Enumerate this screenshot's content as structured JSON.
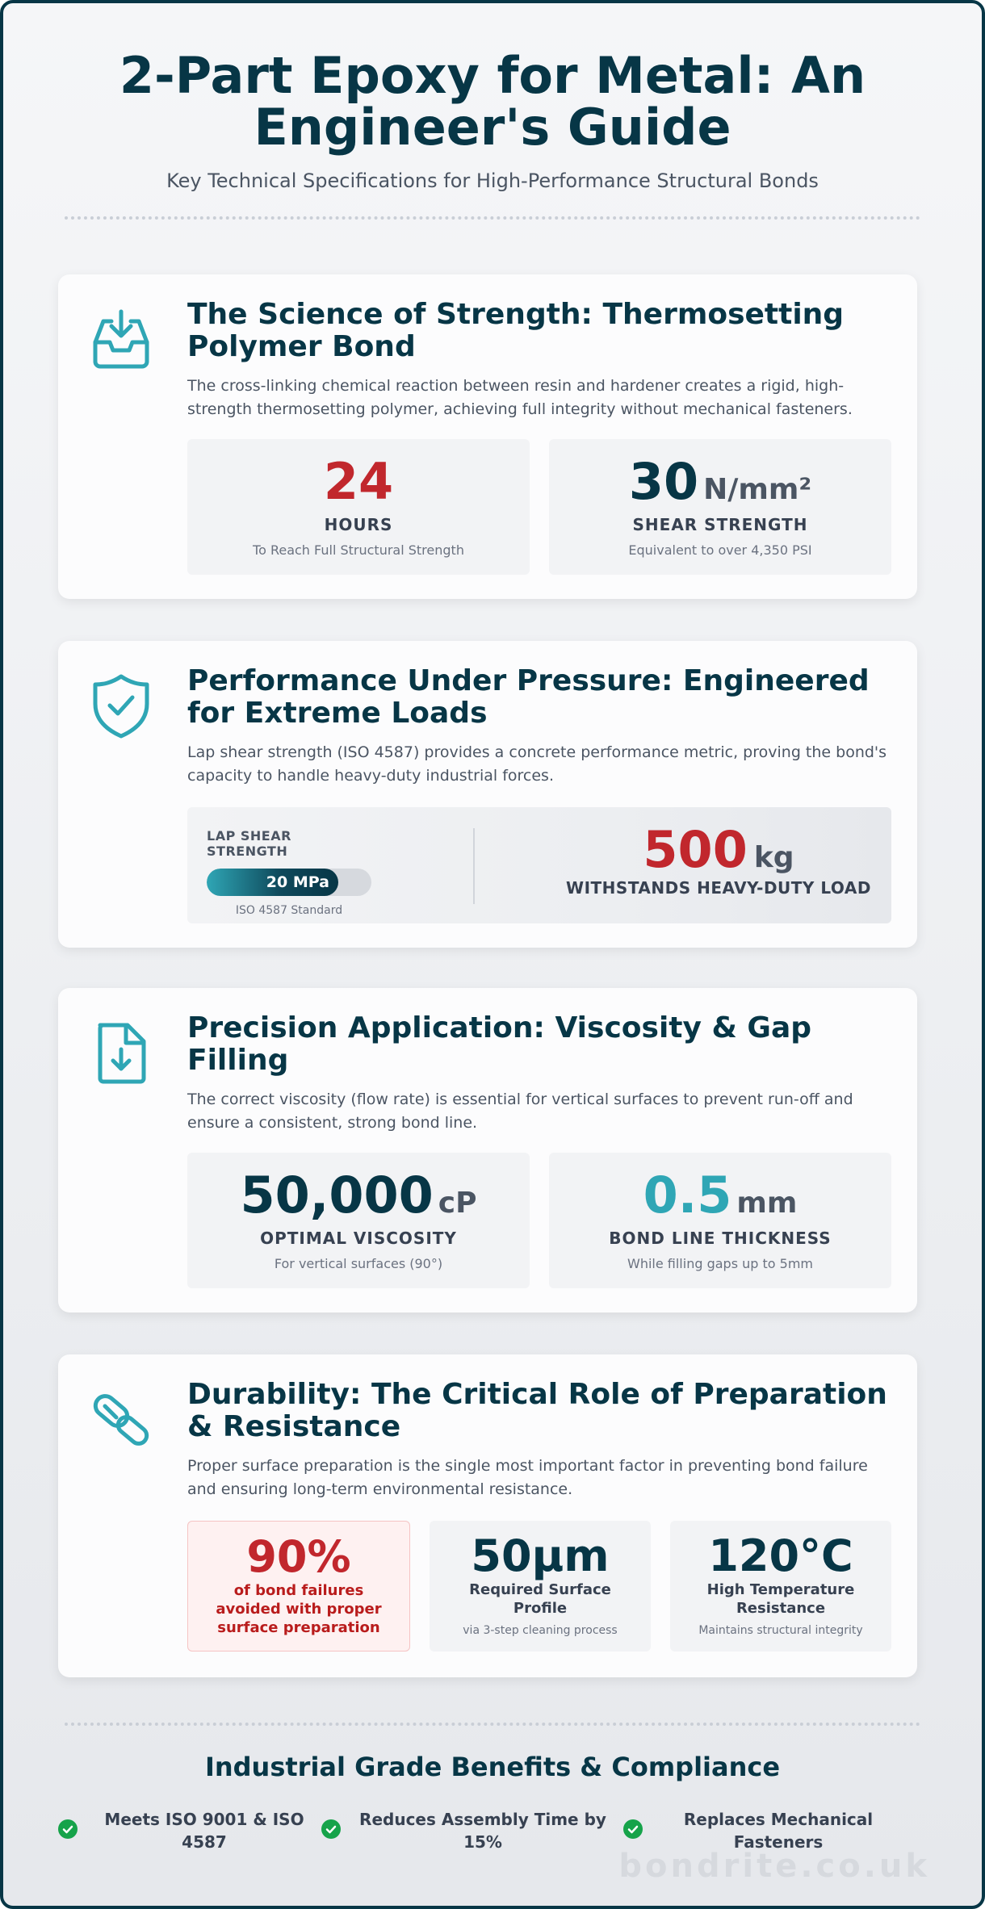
{
  "header": {
    "title": "2-Part Epoxy for Metal: An Engineer's Guide",
    "subtitle": "Key Technical Specifications for High-Performance Structural Bonds"
  },
  "sections": [
    {
      "icon": "inbox-download-icon",
      "title": "The Science of Strength: Thermosetting Polymer Bond",
      "description": "The cross-linking chemical reaction between resin and hardener creates a rigid, high-strength thermosetting polymer, achieving full integrity without mechanical fasteners.",
      "stats": [
        {
          "value": "24",
          "unit": "",
          "label": "HOURS",
          "note": "To Reach Full Structural Strength",
          "color": "#c1272d"
        },
        {
          "value": "30",
          "unit": "N/mm²",
          "label": "SHEAR STRENGTH",
          "note": "Equivalent to over 4,350 PSI",
          "color": "#073646"
        }
      ]
    },
    {
      "icon": "shield-check-icon",
      "title": "Performance Under Pressure: Engineered for Extreme Loads",
      "description": "Lap shear strength (ISO 4587) provides a concrete performance metric, proving the bond's capacity to handle heavy-duty industrial forces.",
      "lap": {
        "label": "LAP SHEAR STRENGTH",
        "value": "20 MPa",
        "fill_fraction": 0.8,
        "standard": "ISO 4587 Standard"
      },
      "load": {
        "value": "500",
        "unit": "kg",
        "label": "WITHSTANDS HEAVY-DUTY LOAD",
        "color": "#c1272d"
      }
    },
    {
      "icon": "file-download-icon",
      "title": "Precision Application: Viscosity & Gap Filling",
      "description": "The correct viscosity (flow rate) is essential for vertical surfaces to prevent run-off and ensure a consistent, strong bond line.",
      "stats": [
        {
          "value": "50,000",
          "unit": "cP",
          "label": "OPTIMAL VISCOSITY",
          "note": "For vertical surfaces (90°)",
          "color": "#073646"
        },
        {
          "value": "0.5",
          "unit": "mm",
          "label": "BOND LINE THICKNESS",
          "note": "While filling gaps up to 5mm",
          "color": "#2fa6b5"
        }
      ]
    },
    {
      "icon": "pills-icon",
      "title": "Durability: The Critical Role of Preparation & Resistance",
      "description": "Proper surface preparation is the single most important factor in preventing bond failure and ensuring long-term environmental resistance.",
      "stats": [
        {
          "value": "90%",
          "label": "of bond failures avoided with proper surface preparation",
          "note": "",
          "color": "#c1272d"
        },
        {
          "value": "50µm",
          "label": "Required Surface Profile",
          "note": "via 3-step cleaning process",
          "color": "#073646"
        },
        {
          "value": "120°C",
          "label": "High Temperature Resistance",
          "note": "Maintains structural integrity",
          "color": "#073646"
        }
      ]
    }
  ],
  "footer": {
    "title": "Industrial Grade Benefits & Compliance",
    "benefits": [
      "Meets ISO 9001 & ISO 4587",
      "Reduces Assembly Time by 15%",
      "Replaces Mechanical Fasteners"
    ],
    "watermark": "bondrite.co.uk"
  },
  "colors": {
    "navy": "#073646",
    "teal": "#2fa6b5",
    "red": "#c1272d",
    "green": "#16a34a"
  }
}
